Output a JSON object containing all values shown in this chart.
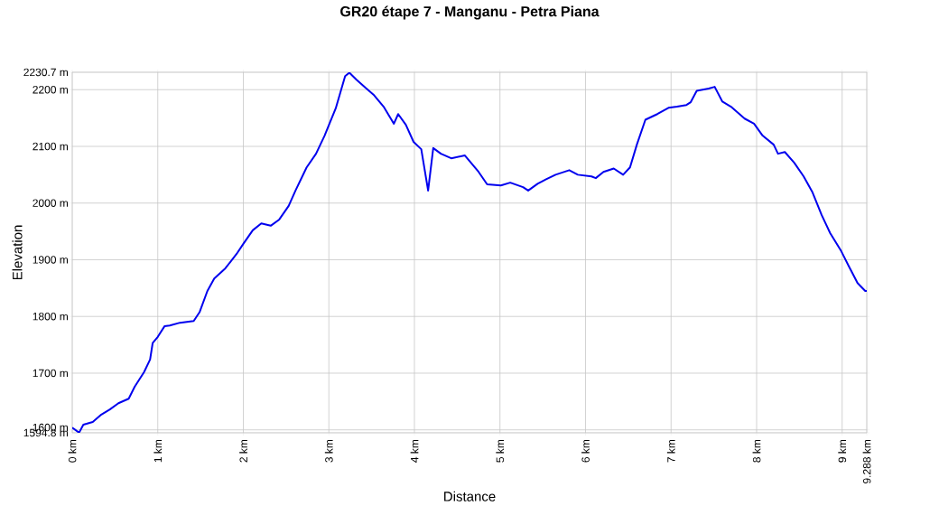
{
  "chart_data": {
    "type": "line",
    "title": "GR20 étape 7 - Manganu - Petra Piana",
    "xlabel": "Distance",
    "ylabel": "Elevation",
    "x": [
      0,
      0.08,
      0.13,
      0.24,
      0.34,
      0.44,
      0.54,
      0.66,
      0.73,
      0.84,
      0.91,
      0.94,
      1.0,
      1.08,
      1.14,
      1.26,
      1.42,
      1.49,
      1.58,
      1.66,
      1.79,
      1.92,
      2.0,
      2.11,
      2.21,
      2.32,
      2.42,
      2.53,
      2.61,
      2.74,
      2.85,
      2.95,
      3.08,
      3.19,
      3.24,
      3.32,
      3.43,
      3.53,
      3.64,
      3.76,
      3.81,
      3.9,
      3.99,
      4.08,
      4.16,
      4.22,
      4.31,
      4.43,
      4.59,
      4.75,
      4.85,
      5.01,
      5.12,
      5.27,
      5.33,
      5.44,
      5.54,
      5.65,
      5.81,
      5.91,
      6.07,
      6.12,
      6.21,
      6.33,
      6.44,
      6.52,
      6.6,
      6.7,
      6.84,
      6.97,
      7.07,
      7.18,
      7.23,
      7.3,
      7.44,
      7.51,
      7.6,
      7.7,
      7.86,
      7.97,
      8.07,
      8.2,
      8.25,
      8.33,
      8.44,
      8.55,
      8.65,
      8.76,
      8.86,
      8.99,
      9.08,
      9.18,
      9.27,
      9.288
    ],
    "series": [
      {
        "color": "#0000ee",
        "values": [
          1604,
          1595,
          1609,
          1614,
          1627,
          1636,
          1647,
          1655,
          1676,
          1702,
          1724,
          1753,
          1764,
          1783,
          1784,
          1789,
          1792,
          1808,
          1845,
          1867,
          1885,
          1910,
          1928,
          1952,
          1964,
          1960,
          1971,
          1995,
          2022,
          2063,
          2087,
          2119,
          2167,
          2224,
          2230,
          2218,
          2203,
          2190,
          2170,
          2140,
          2157,
          2138,
          2108,
          2095,
          2022,
          2097,
          2087,
          2079,
          2084,
          2055,
          2033,
          2031,
          2036,
          2028,
          2022,
          2034,
          2042,
          2050,
          2058,
          2050,
          2047,
          2044,
          2055,
          2061,
          2050,
          2063,
          2103,
          2147,
          2157,
          2168,
          2170,
          2173,
          2178,
          2198,
          2202,
          2205,
          2179,
          2170,
          2149,
          2140,
          2119,
          2103,
          2087,
          2090,
          2071,
          2047,
          2020,
          1979,
          1947,
          1915,
          1888,
          1859,
          1845,
          1845
        ]
      }
    ],
    "xlim": [
      0,
      9.288
    ],
    "ylim": [
      1594.8,
      2230.7
    ],
    "xticks": [
      {
        "value": 0,
        "label": "0 km"
      },
      {
        "value": 1,
        "label": "1 km"
      },
      {
        "value": 2,
        "label": "2 km"
      },
      {
        "value": 3,
        "label": "3 km"
      },
      {
        "value": 4,
        "label": "4 km"
      },
      {
        "value": 5,
        "label": "5 km"
      },
      {
        "value": 6,
        "label": "6 km"
      },
      {
        "value": 7,
        "label": "7 km"
      },
      {
        "value": 8,
        "label": "8 km"
      },
      {
        "value": 9,
        "label": "9 km"
      },
      {
        "value": 9.288,
        "label": "9.288 km"
      }
    ],
    "yticks": [
      {
        "value": 1594.8,
        "label": "1594.8 m"
      },
      {
        "value": 1600,
        "label": "1600 m"
      },
      {
        "value": 1700,
        "label": "1700 m"
      },
      {
        "value": 1800,
        "label": "1800 m"
      },
      {
        "value": 1900,
        "label": "1900 m"
      },
      {
        "value": 2000,
        "label": "2000 m"
      },
      {
        "value": 2100,
        "label": "2100 m"
      },
      {
        "value": 2200,
        "label": "2200 m"
      },
      {
        "value": 2230.7,
        "label": "2230.7 m"
      }
    ],
    "grid": true,
    "marker": "none",
    "line_style": "solid"
  }
}
